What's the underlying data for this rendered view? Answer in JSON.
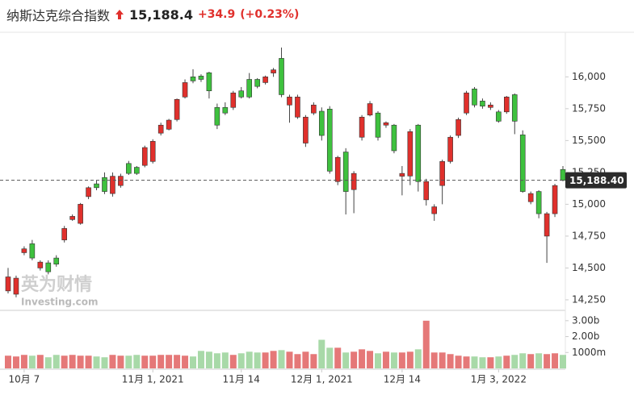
{
  "chart_data": {
    "type": "candlestick",
    "title": "纳斯达克综合指数",
    "price": "15,188.4",
    "change": "+34.9",
    "change_percent": "(+0.23%)",
    "watermark": [
      "英为财情",
      "Investing.com"
    ],
    "up_color": "#e0302c",
    "down_color": "#3ec13e",
    "volume_up_color": "#e57878",
    "volume_down_color": "#a8d9a8",
    "categories": [
      null,
      null,
      "10月 7",
      null,
      null,
      null,
      null,
      null,
      null,
      null,
      null,
      null,
      null,
      null,
      null,
      null,
      null,
      null,
      "11月 1, 2021",
      null,
      null,
      null,
      null,
      null,
      null,
      null,
      null,
      null,
      null,
      "11月 14",
      null,
      null,
      null,
      null,
      null,
      null,
      null,
      null,
      null,
      "12月 1, 2021",
      null,
      null,
      null,
      null,
      null,
      null,
      null,
      null,
      null,
      "12月 14",
      null,
      null,
      null,
      null,
      null,
      null,
      null,
      null,
      null,
      null,
      null,
      "1月 3, 2022",
      null,
      null,
      null,
      null,
      null,
      null,
      null,
      null
    ],
    "open": [
      14320,
      14294,
      14620,
      14690,
      14500,
      14540,
      14578,
      14720,
      14880,
      14850,
      15060,
      15160,
      15210,
      15084,
      15147,
      15320,
      15290,
      15305,
      15336,
      15558,
      15589,
      15665,
      15842,
      16000,
      16006,
      16032,
      15760,
      15760,
      15760,
      15890,
      15980,
      15980,
      15955,
      16030,
      16145,
      15779,
      15684,
      15480,
      15716,
      15730,
      15747,
      15178,
      15410,
      15115,
      15526,
      15700,
      15716,
      15621,
      15621,
      15220,
      15222,
      15621,
      15035,
      14926,
      15147,
      15336,
      15540,
      15716,
      15905,
      15810,
      15760,
      15725,
      15725,
      15860,
      15545,
      15020,
      15100,
      14750,
      14926,
      15273
    ],
    "high": [
      14500,
      14440,
      14670,
      14720,
      14560,
      14560,
      14600,
      14830,
      14920,
      15010,
      15140,
      15190,
      15250,
      15250,
      15240,
      15340,
      15300,
      15460,
      15510,
      15640,
      15670,
      15830,
      15980,
      16060,
      16020,
      16040,
      15790,
      15800,
      15890,
      15920,
      16030,
      15990,
      16010,
      16070,
      16230,
      15860,
      15860,
      15700,
      15800,
      15760,
      15770,
      15380,
      15440,
      15260,
      15700,
      15810,
      15730,
      15650,
      15630,
      15300,
      15590,
      15630,
      15200,
      15000,
      15350,
      15540,
      15680,
      15890,
      15920,
      15830,
      15800,
      15740,
      15850,
      15870,
      15580,
      15100,
      15110,
      14940,
      15160,
      15300
    ],
    "low": [
      14300,
      14270,
      14600,
      14560,
      14480,
      14450,
      14510,
      14700,
      14870,
      14840,
      15040,
      15110,
      15080,
      15060,
      15130,
      15230,
      15230,
      15290,
      15320,
      15540,
      15580,
      15650,
      15830,
      15950,
      15960,
      15830,
      15590,
      15700,
      15740,
      15830,
      15830,
      15910,
      15940,
      16000,
      15840,
      15640,
      15670,
      15450,
      15700,
      15500,
      15240,
      15150,
      14920,
      14930,
      15500,
      15690,
      15500,
      15600,
      15400,
      15070,
      15150,
      15100,
      14990,
      14870,
      15000,
      15320,
      15520,
      15700,
      15760,
      15750,
      15740,
      15640,
      15710,
      15550,
      15090,
      15000,
      14890,
      14540,
      14900,
      15180
    ],
    "close": [
      14430,
      14420,
      14650,
      14578,
      14546,
      14470,
      14530,
      14810,
      14905,
      15000,
      15130,
      15130,
      15100,
      15220,
      15220,
      15242,
      15242,
      15445,
      15494,
      15621,
      15660,
      15823,
      15955,
      15968,
      15980,
      15890,
      15621,
      15716,
      15874,
      15842,
      15842,
      15925,
      16000,
      16055,
      15860,
      15842,
      15842,
      15684,
      15779,
      15540,
      15260,
      15368,
      15100,
      15242,
      15684,
      15790,
      15526,
      15640,
      15420,
      15242,
      15570,
      15178,
      15178,
      14980,
      15336,
      15526,
      15665,
      15874,
      15779,
      15770,
      15779,
      15652,
      15842,
      15652,
      15100,
      15084,
      14926,
      14926,
      15147,
      15188.4
    ],
    "volume": [
      0.8,
      0.75,
      0.85,
      0.8,
      0.85,
      0.7,
      0.85,
      0.8,
      0.85,
      0.8,
      0.8,
      0.75,
      0.7,
      0.85,
      0.8,
      0.8,
      0.85,
      0.8,
      0.8,
      0.85,
      0.85,
      0.85,
      0.8,
      0.75,
      1.1,
      1.05,
      0.95,
      1.0,
      0.85,
      0.95,
      1.05,
      1.0,
      1.0,
      1.1,
      1.15,
      1.05,
      0.9,
      1.05,
      0.9,
      1.8,
      1.3,
      1.3,
      1.0,
      1.05,
      1.2,
      1.1,
      0.95,
      1.05,
      1.0,
      1.0,
      1.05,
      1.2,
      3.0,
      1.0,
      1.0,
      0.9,
      0.8,
      0.75,
      0.75,
      0.7,
      0.7,
      0.75,
      0.8,
      0.85,
      0.95,
      0.9,
      0.95,
      0.9,
      0.95,
      0.85
    ],
    "ylim": [
      14180,
      16350
    ],
    "yticks": [
      {
        "value": 14250,
        "label": "14,250"
      },
      {
        "value": 14500,
        "label": "14,500"
      },
      {
        "value": 14750,
        "label": "14,750"
      },
      {
        "value": 15000,
        "label": "15,000"
      },
      {
        "value": 15250,
        "label": "15,250"
      },
      {
        "value": 15500,
        "label": "15,500"
      },
      {
        "value": 15750,
        "label": "15,750"
      },
      {
        "value": 16000,
        "label": "16,000"
      }
    ],
    "volume_ylim": [
      0,
      3.6
    ],
    "volume_ticks": [
      {
        "value": 1,
        "label": "1000m"
      },
      {
        "value": 2,
        "label": "2.00b"
      },
      {
        "value": 3,
        "label": "3.00b"
      }
    ],
    "last_price": {
      "value": 15188.4,
      "label": "15,188.40"
    }
  }
}
